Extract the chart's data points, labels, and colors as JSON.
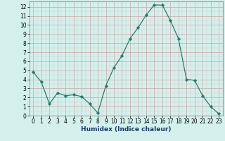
{
  "x": [
    0,
    1,
    2,
    3,
    4,
    5,
    6,
    7,
    8,
    9,
    10,
    11,
    12,
    13,
    14,
    15,
    16,
    17,
    18,
    19,
    20,
    21,
    22,
    23
  ],
  "y": [
    4.8,
    3.7,
    1.3,
    2.5,
    2.2,
    2.3,
    2.1,
    1.3,
    0.3,
    3.3,
    5.3,
    6.6,
    8.5,
    9.7,
    11.1,
    12.2,
    12.2,
    10.5,
    8.5,
    4.0,
    3.9,
    2.2,
    1.0,
    0.2
  ],
  "line_color": "#2d7a6b",
  "marker": "D",
  "marker_size": 2.2,
  "bg_color": "#d4f0ec",
  "grid_major_color": "#c8a8a8",
  "grid_minor_color": "#dcc8c8",
  "xlabel": "Humidex (Indice chaleur)",
  "xlim": [
    -0.5,
    23.5
  ],
  "ylim": [
    0,
    12.6
  ],
  "yticks": [
    0,
    1,
    2,
    3,
    4,
    5,
    6,
    7,
    8,
    9,
    10,
    11,
    12
  ],
  "xticks": [
    0,
    1,
    2,
    3,
    4,
    5,
    6,
    7,
    8,
    9,
    10,
    11,
    12,
    13,
    14,
    15,
    16,
    17,
    18,
    19,
    20,
    21,
    22,
    23
  ],
  "tick_fontsize": 5.5,
  "xlabel_fontsize": 6.5,
  "xlabel_color": "#1a3a6a",
  "linewidth": 0.9
}
